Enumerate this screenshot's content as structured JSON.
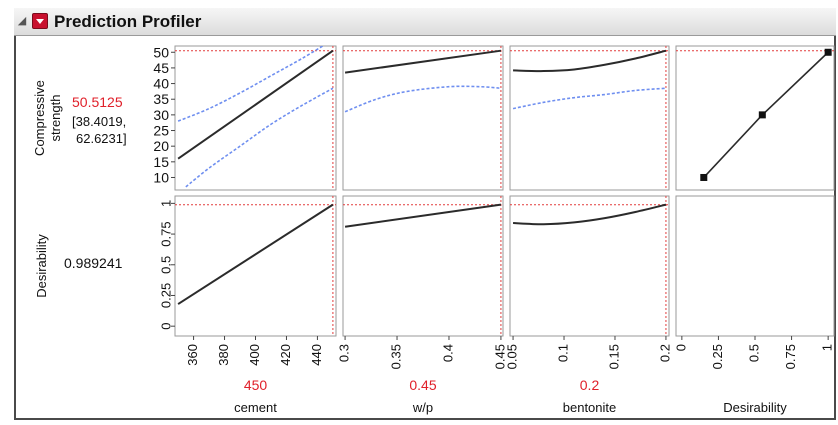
{
  "title": "Prediction Profiler",
  "colors": {
    "curve": "#2b2b2b",
    "ci": "#6f8ff0",
    "crosshair": "#e23b3b",
    "current_value": "#e0202a",
    "text": "#111111",
    "grid_border": "#9a9a9a"
  },
  "chart_data": {
    "type": "line",
    "title": "Prediction Profiler",
    "responses": [
      {
        "label": "Compressive strength",
        "current_value": "50.5125",
        "interval": "[38.4019, 62.6231]",
        "ylim": [
          6,
          52
        ],
        "ticks": [
          "10",
          "15",
          "20",
          "25",
          "30",
          "35",
          "40",
          "45",
          "50"
        ],
        "tick_values": [
          10,
          15,
          20,
          25,
          30,
          35,
          40,
          45,
          50
        ],
        "current_line": 50.5
      },
      {
        "label": "Desirability",
        "current_value": "0.989241",
        "ylim": [
          -0.08,
          1.06
        ],
        "ticks": [
          "0",
          "0.25",
          "0.5",
          "0.75",
          "1"
        ],
        "tick_values": [
          0,
          0.25,
          0.5,
          0.75,
          1
        ],
        "current_line": 0.989
      }
    ],
    "factors": [
      {
        "label": "cement",
        "current_value": "450",
        "current": 450,
        "xlim": [
          348,
          452
        ],
        "ticks": [
          "360",
          "380",
          "400",
          "420",
          "440"
        ],
        "tick_values": [
          360,
          380,
          400,
          420,
          440
        ],
        "series": [
          {
            "name": "",
            "x": [
              350,
              450
            ],
            "y": [
              16,
              50.5
            ]
          },
          {
            "name": "",
            "x": [
              350,
              370,
              390,
              410,
              430,
              450
            ],
            "y": [
              28,
              32,
              37,
              42.5,
              48,
              54
            ]
          },
          {
            "name": "",
            "x": [
              355,
              370,
              390,
              410,
              430,
              450
            ],
            "y": [
              7,
              13,
              20,
              27,
              33,
              38.5
            ]
          },
          {
            "name": "",
            "x": [
              350,
              450
            ],
            "y": [
              0.18,
              0.99
            ]
          }
        ]
      },
      {
        "label": "w/p",
        "current_value": "0.45",
        "current": 0.45,
        "xlim": [
          0.298,
          0.452
        ],
        "ticks": [
          "0.3",
          "0.35",
          "0.4",
          "0.45"
        ],
        "tick_values": [
          0.3,
          0.35,
          0.4,
          0.45
        ],
        "series": [
          {
            "name": "",
            "x": [
              0.3,
              0.45
            ],
            "y": [
              43.5,
              50.5
            ]
          },
          {
            "name": "",
            "x": [
              0.3,
              0.33,
              0.36,
              0.4,
              0.43,
              0.45
            ],
            "y": [
              31,
              35,
              37.5,
              39,
              39,
              38.5
            ]
          },
          {
            "name": "",
            "x": [
              0.3,
              0.45
            ],
            "y": [
              0.81,
              0.99
            ]
          }
        ]
      },
      {
        "label": "bentonite",
        "current_value": "0.2",
        "current": 0.2,
        "xlim": [
          0.047,
          0.203
        ],
        "ticks": [
          "0.05",
          "0.1",
          "0.15",
          "0.2"
        ],
        "tick_values": [
          0.05,
          0.1,
          0.15,
          0.2
        ],
        "series": [
          {
            "name": "",
            "x": [
              0.05,
              0.08,
              0.11,
              0.14,
              0.17,
              0.2
            ],
            "y": [
              44.2,
              44,
              44.5,
              46,
              48,
              50.5
            ]
          },
          {
            "name": "",
            "x": [
              0.05,
              0.08,
              0.11,
              0.14,
              0.17,
              0.2
            ],
            "y": [
              32,
              34,
              35.5,
              36.5,
              37.8,
              38.5
            ]
          },
          {
            "name": "",
            "x": [
              0.05,
              0.08,
              0.11,
              0.14,
              0.17,
              0.2
            ],
            "y": [
              0.84,
              0.83,
              0.845,
              0.88,
              0.93,
              0.99
            ]
          }
        ]
      },
      {
        "label": "Desirability",
        "current_value": "",
        "xlim": [
          -0.04,
          1.04
        ],
        "ticks": [
          "0",
          "0.25",
          "0.5",
          "0.75",
          "1"
        ],
        "tick_values": [
          0,
          0.25,
          0.5,
          0.75,
          1
        ],
        "series": [
          {
            "name": "",
            "x": [
              0.15,
              0.55,
              1.0
            ],
            "y": [
              10,
              30,
              50
            ]
          }
        ]
      }
    ]
  }
}
